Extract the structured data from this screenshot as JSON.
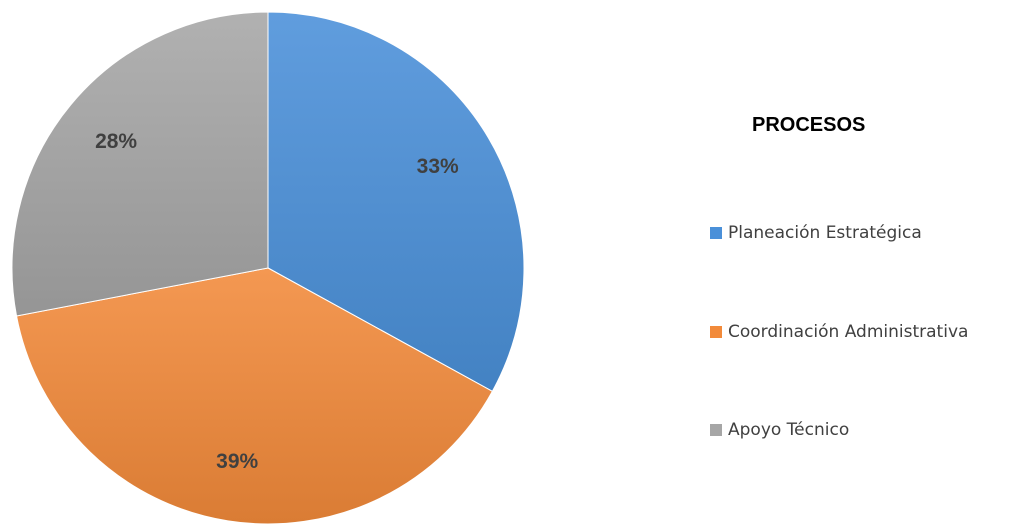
{
  "chart_data": {
    "type": "pie",
    "title": "PROCESOS",
    "categories": [
      "Planeación Estratégica",
      "Coordinación Administrativa",
      "Apoyo Técnico"
    ],
    "values": [
      33,
      39,
      28
    ],
    "labels": [
      "33%",
      "39%",
      "28%"
    ],
    "colors": [
      "#4A90D9",
      "#F28A3A",
      "#A6A6A6"
    ],
    "legend_position": "right"
  }
}
